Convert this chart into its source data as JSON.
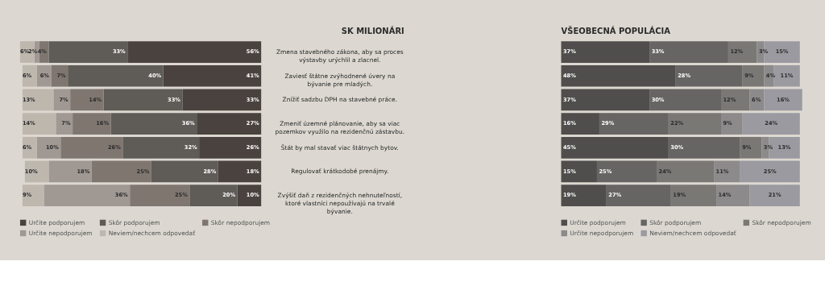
{
  "chart_data": [
    {
      "type": "bar",
      "title": "SK MILIONÁRI",
      "orientation": "horizontal",
      "stacked": true,
      "legend": "bottom",
      "tick_labels": "y",
      "categories": [
        "Zmena stavebného zákona, aby sa proces výstavby urýchlil a zlacnel.",
        "Zaviesť štátne zvýhodnené úvery na bývanie pre mladých.",
        "Znížiť sadzbu DPH na stavebné práce.",
        "Zmeniť územné plánovanie, aby sa viac pozemkov využilo na rezidenčnú zástavbu.",
        "Štát by mal stavať viac štátnych bytov.",
        "Regulovať krátkodobé prenájmy.",
        "Zvýšiť daň z rezidenčných nehnuteľností, ktoré vlastníci nepoužívajú na trvalé bývanie."
      ],
      "series": [
        {
          "name": "Určite podporujem",
          "color": "#4a423f",
          "values": [
            56,
            41,
            33,
            27,
            26,
            18,
            10
          ],
          "value_labels": [
            "56%",
            "41%",
            "33%",
            "27%",
            "26%",
            "18%",
            "10%"
          ]
        },
        {
          "name": "Skôr podporujem",
          "color": "#5f5b57",
          "values": [
            33,
            40,
            33,
            36,
            32,
            28,
            20
          ],
          "value_labels": [
            "33%",
            "40%",
            "33%",
            "36%",
            "32%",
            "28%",
            "20%"
          ]
        },
        {
          "name": "Skôr nepodporujem",
          "color": "#7f7670",
          "values": [
            4,
            7,
            14,
            16,
            26,
            25,
            25
          ],
          "value_labels": [
            "4%",
            "7%",
            "14%",
            "16%",
            "26%",
            "25%",
            "25%"
          ]
        },
        {
          "name": "Určite nepodporujem",
          "color": "#9f9893",
          "values": [
            2,
            6,
            7,
            7,
            10,
            18,
            36
          ],
          "value_labels": [
            "2%",
            "6%",
            "7%",
            "7%",
            "10%",
            "18%",
            "36%"
          ]
        },
        {
          "name": "Neviem/nechcem odpovedať",
          "color": "#bdb7ae",
          "values": [
            6,
            6,
            13,
            14,
            6,
            10,
            9
          ],
          "value_labels": [
            "6%",
            "6%",
            "13%",
            "14%",
            "6%",
            "10%",
            "9%"
          ]
        }
      ]
    },
    {
      "type": "bar",
      "title": "VŠEOBECNÁ POPULÁCIA",
      "orientation": "horizontal",
      "stacked": true,
      "legend": "bottom",
      "tick_labels": false,
      "categories": [
        null,
        null,
        null,
        null,
        null,
        null,
        null
      ],
      "series": [
        {
          "name": "Určite podporujem",
          "color": "#4f4e4c",
          "values": [
            37,
            48,
            37,
            16,
            45,
            15,
            19
          ],
          "value_labels": [
            "37%",
            "48%",
            "37%",
            "16%",
            "45%",
            "15%",
            "19%"
          ]
        },
        {
          "name": "Skôr podporujem",
          "color": "#666563",
          "values": [
            33,
            28,
            30,
            29,
            30,
            25,
            27
          ],
          "value_labels": [
            "33%",
            "28%",
            "30%",
            "29%",
            "30%",
            "25%",
            "27%"
          ]
        },
        {
          "name": "Skôr nepodporujem",
          "color": "#7a7875",
          "values": [
            12,
            9,
            12,
            22,
            9,
            24,
            19
          ],
          "value_labels": [
            "12%",
            "9%",
            "12%",
            "22%",
            "9%",
            "24%",
            "19%"
          ]
        },
        {
          "name": "Určite nepodporujem",
          "color": "#8c8a8a",
          "values": [
            3,
            4,
            6,
            9,
            3,
            11,
            14
          ],
          "value_labels": [
            "3%",
            "4%",
            "6%",
            "9%",
            "3%",
            "11%",
            "14%"
          ]
        },
        {
          "name": "Neviem/nechcem odpovedať",
          "color": "#9b9aa0",
          "values": [
            15,
            11,
            16,
            24,
            13,
            25,
            21
          ],
          "value_labels": [
            "15%",
            "11%",
            "16%",
            "24%",
            "13%",
            "25%",
            "21%"
          ]
        }
      ]
    }
  ]
}
